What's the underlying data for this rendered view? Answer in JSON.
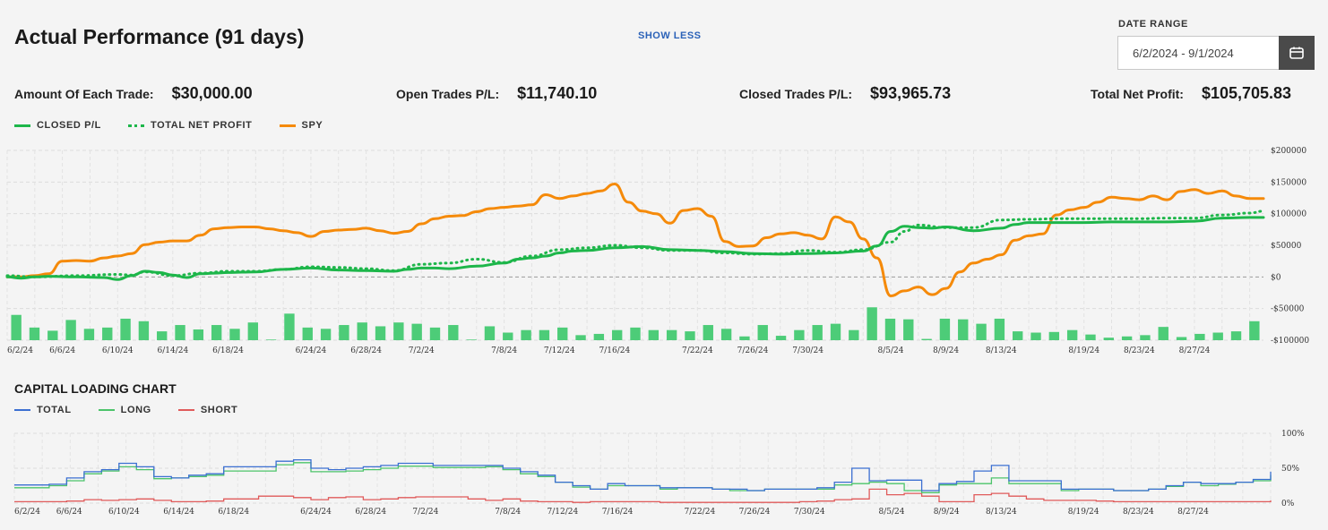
{
  "header": {
    "title": "Actual Performance (91 days)",
    "show_less": "SHOW LESS",
    "date_range_label": "DATE RANGE",
    "date_range_value": "6/2/2024 - 9/1/2024"
  },
  "stats": [
    {
      "label": "Amount Of Each Trade:",
      "value": "$30,000.00"
    },
    {
      "label": "Open Trades P/L:",
      "value": "$11,740.10"
    },
    {
      "label": "Closed Trades P/L:",
      "value": "$93,965.73"
    },
    {
      "label": "Total Net Profit:",
      "value": "$105,705.83"
    }
  ],
  "legend1": [
    {
      "label": "CLOSED P/L",
      "color": "#1db64a",
      "style": "solid"
    },
    {
      "label": "TOTAL NET PROFIT",
      "color": "#1db64a",
      "style": "dotted"
    },
    {
      "label": "SPY",
      "color": "#f58a0a",
      "style": "solid"
    }
  ],
  "capital_title": "CAPITAL LOADING CHART",
  "legend2": [
    {
      "label": "TOTAL",
      "color": "#3b6fd1"
    },
    {
      "label": "LONG",
      "color": "#4cc46a"
    },
    {
      "label": "SHORT",
      "color": "#e05a5a"
    }
  ],
  "chart_data": [
    {
      "type": "line",
      "name": "performance",
      "x_tick_labels": [
        "6/2/24",
        "6/6/24",
        "6/10/24",
        "6/14/24",
        "6/18/24",
        "6/24/24",
        "6/28/24",
        "7/2/24",
        "7/8/24",
        "7/12/24",
        "7/16/24",
        "7/22/24",
        "7/26/24",
        "7/30/24",
        "8/5/24",
        "8/9/24",
        "8/13/24",
        "8/19/24",
        "8/23/24",
        "8/27/24"
      ],
      "x_tick_days": [
        0,
        4,
        8,
        12,
        16,
        22,
        26,
        30,
        36,
        40,
        44,
        50,
        54,
        58,
        64,
        68,
        72,
        78,
        82,
        86
      ],
      "x_range": [
        0,
        91
      ],
      "y_range": [
        -100000,
        200000
      ],
      "y_ticks": [
        200000,
        150000,
        100000,
        50000,
        0,
        -50000,
        -100000
      ],
      "y_tick_labels": [
        "$200000",
        "$150000",
        "$100000",
        "$50000",
        "$0",
        "-$50000",
        "-$100000"
      ],
      "grid": true,
      "series": [
        {
          "name": "CLOSED P/L",
          "style": "solid",
          "color": "#1db64a",
          "x": [
            0,
            1,
            2,
            3,
            5,
            7,
            8,
            9,
            10,
            11,
            12,
            13,
            14,
            15,
            16,
            17,
            18,
            20,
            22,
            24,
            26,
            28,
            29,
            30,
            31,
            32,
            34,
            36,
            37,
            38,
            39,
            40,
            41,
            42,
            44,
            46,
            48,
            50,
            52,
            54,
            56,
            58,
            60,
            62,
            63,
            64,
            65,
            66,
            67,
            68,
            70,
            72,
            73,
            74,
            75,
            76,
            78,
            80,
            82,
            84,
            86,
            88,
            90,
            91
          ],
          "y": [
            0,
            -2000,
            0,
            1000,
            0,
            -1000,
            -4000,
            2000,
            9000,
            7000,
            3000,
            -1000,
            5000,
            6000,
            7000,
            7500,
            8000,
            12000,
            14000,
            11000,
            10000,
            9000,
            12000,
            14000,
            14000,
            13000,
            17000,
            22000,
            28000,
            30000,
            33000,
            38000,
            41000,
            42000,
            46000,
            48000,
            43000,
            42000,
            40000,
            37000,
            36000,
            37000,
            38000,
            41000,
            49000,
            72000,
            80000,
            78000,
            77000,
            79000,
            73000,
            77000,
            83000,
            86000,
            86000,
            86000,
            86000,
            87000,
            87000,
            87000,
            88000,
            93000,
            94000,
            94000
          ]
        },
        {
          "name": "TOTAL NET PROFIT",
          "style": "dotted",
          "color": "#1db64a",
          "x": [
            0,
            2,
            5,
            8,
            9,
            10,
            12,
            14,
            16,
            18,
            20,
            22,
            24,
            26,
            28,
            30,
            32,
            34,
            36,
            38,
            40,
            42,
            44,
            46,
            48,
            50,
            52,
            54,
            56,
            58,
            60,
            62,
            64,
            65,
            66,
            68,
            70,
            72,
            74,
            76,
            78,
            80,
            82,
            84,
            86,
            88,
            90,
            91
          ],
          "y": [
            2000,
            0,
            2000,
            4000,
            3000,
            8000,
            2000,
            6000,
            9000,
            9000,
            12000,
            16000,
            15000,
            13000,
            10000,
            20000,
            22000,
            28000,
            23000,
            33000,
            43000,
            46000,
            50000,
            46000,
            42000,
            42000,
            38000,
            36000,
            37000,
            42000,
            39000,
            43000,
            55000,
            72000,
            82000,
            78000,
            78000,
            90000,
            91000,
            92000,
            92000,
            92000,
            92000,
            93000,
            93000,
            98000,
            101000,
            104000
          ]
        },
        {
          "name": "SPY",
          "style": "solid",
          "color": "#f58a0a",
          "x": [
            0,
            1,
            2,
            3,
            4,
            5,
            6,
            7,
            8,
            9,
            10,
            11,
            12,
            13,
            14,
            15,
            16,
            17,
            18,
            19,
            20,
            21,
            22,
            23,
            24,
            25,
            26,
            27,
            28,
            29,
            30,
            31,
            32,
            33,
            34,
            35,
            36,
            37,
            38,
            39,
            40,
            41,
            42,
            43,
            44,
            45,
            46,
            47,
            48,
            49,
            50,
            51,
            52,
            53,
            54,
            55,
            56,
            57,
            58,
            59,
            60,
            61,
            62,
            63,
            64,
            65,
            66,
            67,
            68,
            69,
            70,
            71,
            72,
            73,
            74,
            75,
            76,
            77,
            78,
            79,
            80,
            81,
            82,
            83,
            84,
            85,
            86,
            87,
            88,
            89,
            90,
            91
          ],
          "y": [
            0,
            0,
            2000,
            5000,
            25000,
            26000,
            25000,
            30000,
            33000,
            37000,
            51000,
            55000,
            57000,
            57000,
            66000,
            76000,
            78000,
            79000,
            79000,
            76000,
            73000,
            70000,
            64000,
            72000,
            74000,
            75000,
            77000,
            73000,
            69000,
            72000,
            84000,
            92000,
            96000,
            97000,
            103000,
            108000,
            110000,
            112000,
            114000,
            130000,
            124000,
            128000,
            132000,
            136000,
            147000,
            118000,
            104000,
            100000,
            85000,
            105000,
            108000,
            96000,
            56000,
            48000,
            49000,
            62000,
            68000,
            70000,
            66000,
            60000,
            95000,
            87000,
            60000,
            30000,
            -30000,
            -22000,
            -16000,
            -28000,
            -18000,
            8000,
            22000,
            28000,
            35000,
            58000,
            65000,
            68000,
            98000,
            106000,
            110000,
            118000,
            126000,
            124000,
            122000,
            128000,
            122000,
            135000,
            138000,
            132000,
            136000,
            128000,
            124000,
            124000
          ]
        }
      ],
      "bars": {
        "name": "daily P/L",
        "color": "#4dcc78",
        "values": [
          -60000,
          -80000,
          -85000,
          -68000,
          -82000,
          -80000,
          -66000,
          -70000,
          -86000,
          -76000,
          -83000,
          -76000,
          -82000,
          -72000,
          -99000,
          -58000,
          -80000,
          -82000,
          -76000,
          -72000,
          -78000,
          -72000,
          -74000,
          -80000,
          -76000,
          -99000,
          -78000,
          -88000,
          -84000,
          -84000,
          -80000,
          -92000,
          -90000,
          -84000,
          -80000,
          -84000,
          -84000,
          -86000,
          -76000,
          -82000,
          -94000,
          -76000,
          -93000,
          -84000,
          -76000,
          -74000,
          -84000,
          -48000,
          -66000,
          -67000,
          -98000,
          -66000,
          -67000,
          -74000,
          -66000,
          -86000,
          -88000,
          -87000,
          -84000,
          -91000,
          -96000,
          -94000,
          -92000,
          -79000,
          -95000,
          -90000,
          -88000,
          -86000,
          -70000
        ]
      }
    },
    {
      "type": "line",
      "name": "capital loading",
      "step": true,
      "x_tick_labels": [
        "6/2/24",
        "6/6/24",
        "6/10/24",
        "6/14/24",
        "6/18/24",
        "6/24/24",
        "6/28/24",
        "7/2/24",
        "7/8/24",
        "7/12/24",
        "7/16/24",
        "7/22/24",
        "7/26/24",
        "7/30/24",
        "8/5/24",
        "8/9/24",
        "8/13/24",
        "8/19/24",
        "8/23/24",
        "8/27/24"
      ],
      "x_tick_days": [
        0,
        4,
        8,
        12,
        16,
        22,
        26,
        30,
        36,
        40,
        44,
        50,
        54,
        58,
        64,
        68,
        72,
        78,
        82,
        86
      ],
      "x_range": [
        0,
        91
      ],
      "y_range": [
        0,
        100
      ],
      "y_ticks": [
        100,
        50,
        0
      ],
      "y_tick_labels": [
        "100%",
        "50%",
        "0%"
      ],
      "grid": true,
      "series": [
        {
          "name": "TOTAL",
          "color": "#3b6fd1",
          "y": [
            26,
            26,
            27,
            36,
            45,
            48,
            57,
            52,
            38,
            36,
            40,
            42,
            52,
            52,
            52,
            60,
            62,
            50,
            48,
            50,
            52,
            54,
            57,
            57,
            54,
            54,
            54,
            54,
            50,
            45,
            40,
            30,
            25,
            20,
            28,
            25,
            25,
            22,
            22,
            22,
            20,
            20,
            18,
            20,
            20,
            20,
            22,
            30,
            50,
            32,
            33,
            33,
            18,
            28,
            31,
            46,
            54,
            32,
            32,
            32,
            20,
            20,
            20,
            18,
            18,
            20,
            25,
            30,
            28,
            28,
            30,
            34,
            45
          ]
        },
        {
          "name": "LONG",
          "color": "#4cc46a",
          "y": [
            22,
            22,
            25,
            32,
            42,
            46,
            52,
            48,
            35,
            36,
            38,
            40,
            46,
            46,
            46,
            55,
            58,
            45,
            45,
            46,
            48,
            50,
            53,
            53,
            51,
            51,
            51,
            52,
            48,
            42,
            38,
            30,
            23,
            20,
            25,
            25,
            25,
            20,
            22,
            22,
            20,
            18,
            18,
            20,
            20,
            20,
            20,
            26,
            28,
            30,
            28,
            18,
            15,
            26,
            28,
            28,
            36,
            28,
            28,
            28,
            18,
            20,
            20,
            18,
            18,
            20,
            24,
            30,
            25,
            27,
            30,
            32,
            40
          ]
        },
        {
          "name": "SHORT",
          "color": "#e05a5a",
          "y": [
            2,
            2,
            2,
            3,
            5,
            4,
            5,
            6,
            4,
            2,
            2,
            3,
            6,
            6,
            10,
            10,
            8,
            5,
            8,
            9,
            5,
            6,
            8,
            9,
            9,
            9,
            6,
            4,
            6,
            3,
            2,
            2,
            1,
            2,
            2,
            2,
            2,
            1,
            1,
            1,
            1,
            1,
            1,
            1,
            1,
            2,
            3,
            5,
            6,
            20,
            12,
            14,
            10,
            2,
            2,
            12,
            14,
            10,
            6,
            4,
            4,
            4,
            3,
            2,
            2,
            2,
            2,
            2,
            2,
            2,
            2,
            2,
            4
          ]
        }
      ]
    }
  ]
}
